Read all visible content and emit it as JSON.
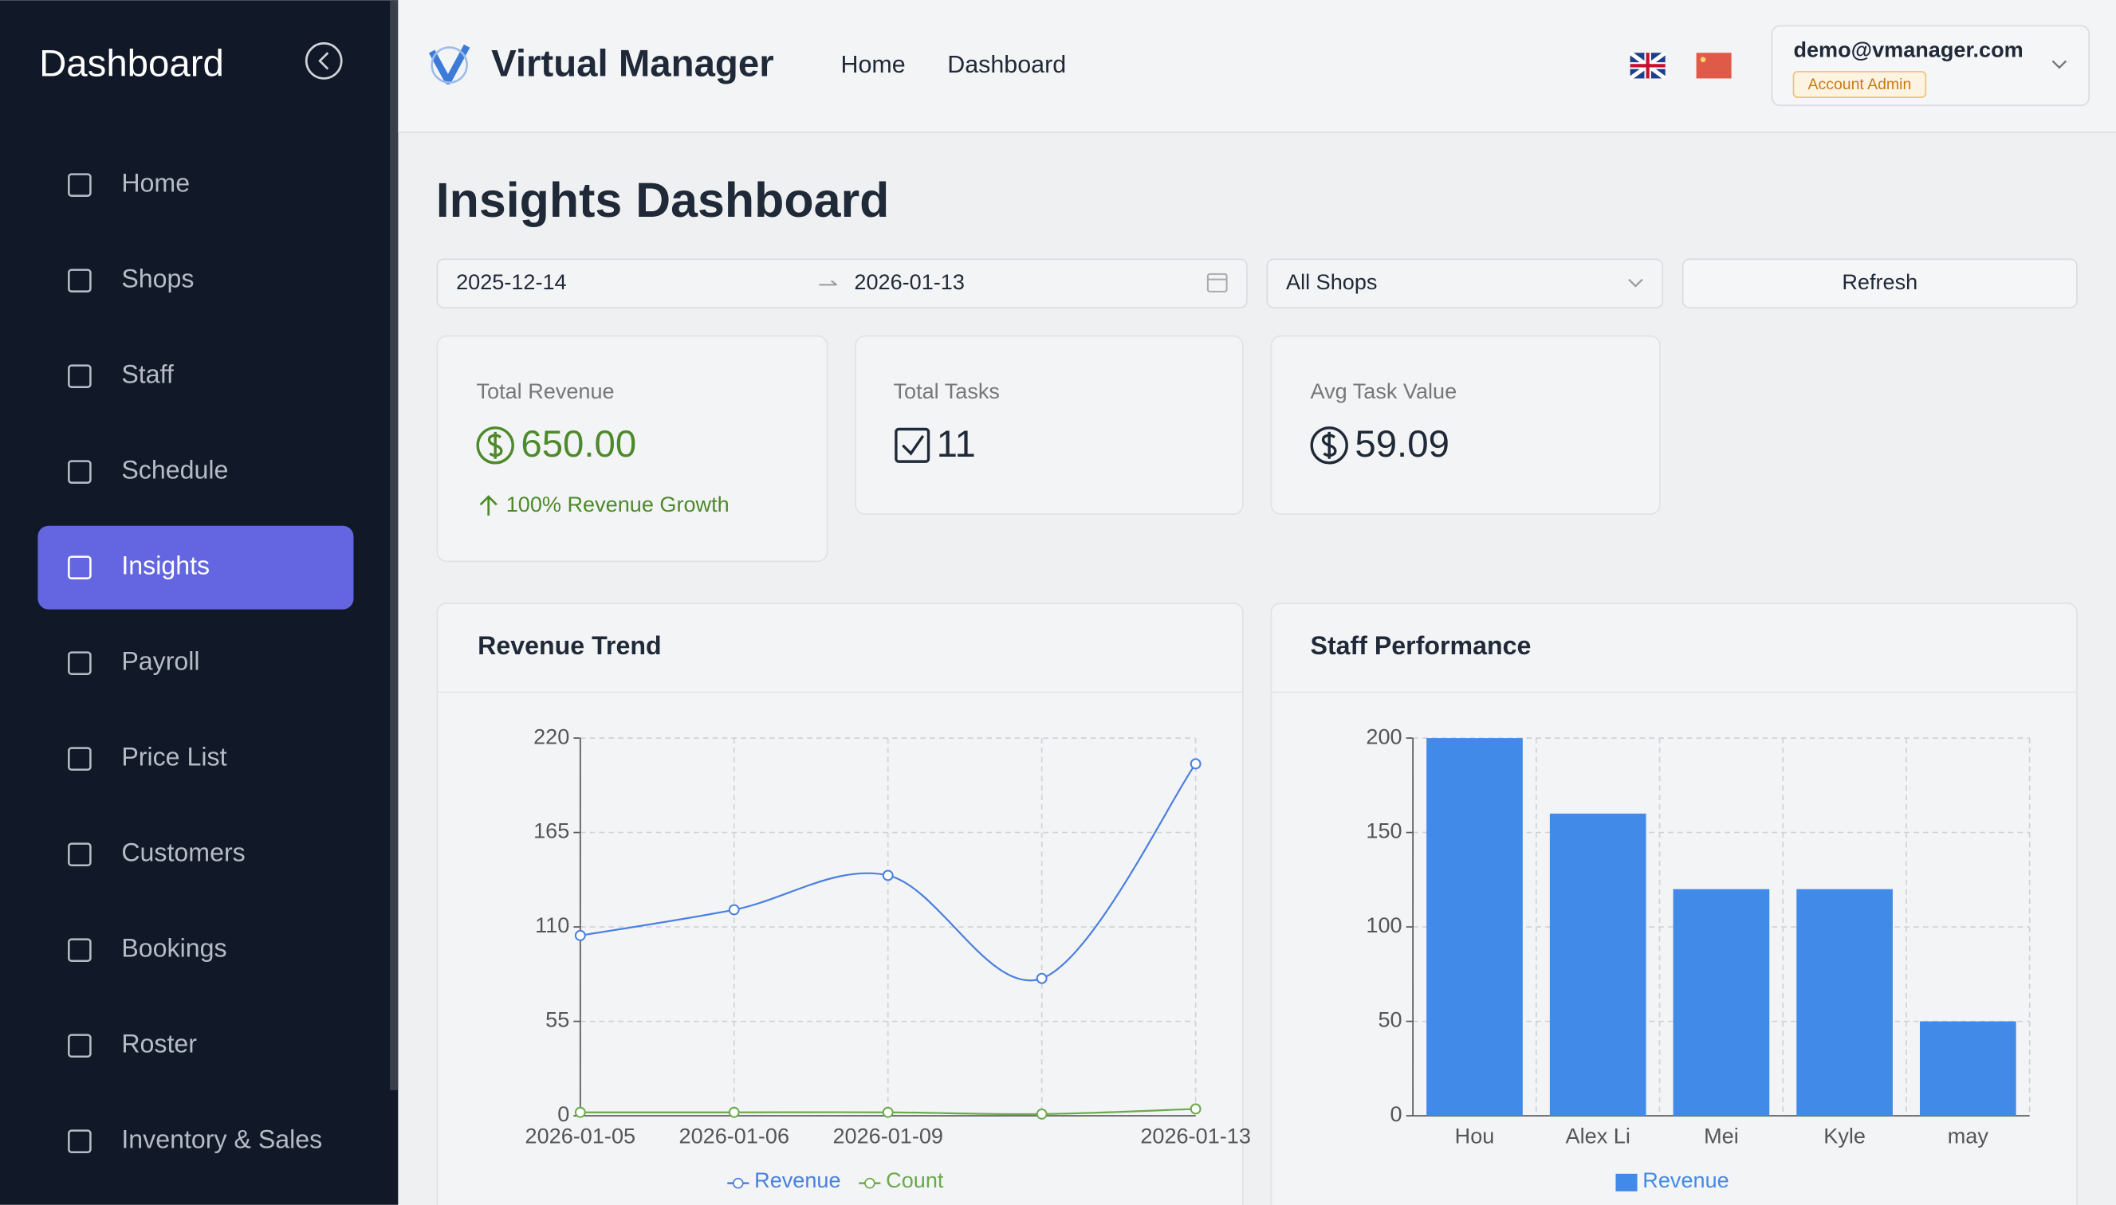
{
  "sidebar": {
    "title": "Dashboard",
    "items": [
      "Home",
      "Shops",
      "Staff",
      "Schedule",
      "Insights",
      "Payroll",
      "Price List",
      "Customers",
      "Bookings",
      "Roster",
      "Inventory & Sales"
    ],
    "active_index": 4
  },
  "header": {
    "brand": "Virtual Manager",
    "nav": [
      "Home",
      "Dashboard"
    ],
    "user_email": "demo@vmanager.com",
    "user_role": "Account Admin"
  },
  "page": {
    "title": "Insights Dashboard",
    "date_start": "2025-12-14",
    "date_end": "2026-01-13",
    "shop_filter": "All Shops",
    "refresh": "Refresh"
  },
  "stats": [
    {
      "label": "Total Revenue",
      "value": "650.00",
      "note": "100% Revenue Growth"
    },
    {
      "label": "Total Tasks",
      "value": "11"
    },
    {
      "label": "Avg Task Value",
      "value": "59.09"
    }
  ],
  "chart_data": [
    {
      "type": "line",
      "title": "Revenue Trend",
      "categories": [
        "2026-01-05",
        "2026-01-06",
        "2026-01-09",
        null,
        "2026-01-13"
      ],
      "series": [
        {
          "name": "Revenue",
          "color": "#4a7fe0",
          "values": [
            105,
            120,
            140,
            80,
            205
          ]
        },
        {
          "name": "Count",
          "color": "#6aaa4a",
          "values": [
            2,
            2,
            2,
            1,
            4
          ]
        }
      ],
      "ylim": [
        0,
        220
      ],
      "yticks": [
        0,
        55,
        110,
        165,
        220
      ],
      "grid": true
    },
    {
      "type": "bar",
      "title": "Staff Performance",
      "categories": [
        "Hou",
        "Alex Li",
        "Mei",
        "Kyle",
        "may"
      ],
      "series": [
        {
          "name": "Revenue",
          "color": "#418ae8",
          "values": [
            200,
            160,
            120,
            120,
            50
          ]
        }
      ],
      "ylim": [
        0,
        200
      ],
      "yticks": [
        0,
        50,
        100,
        150,
        200
      ],
      "grid": true
    }
  ]
}
